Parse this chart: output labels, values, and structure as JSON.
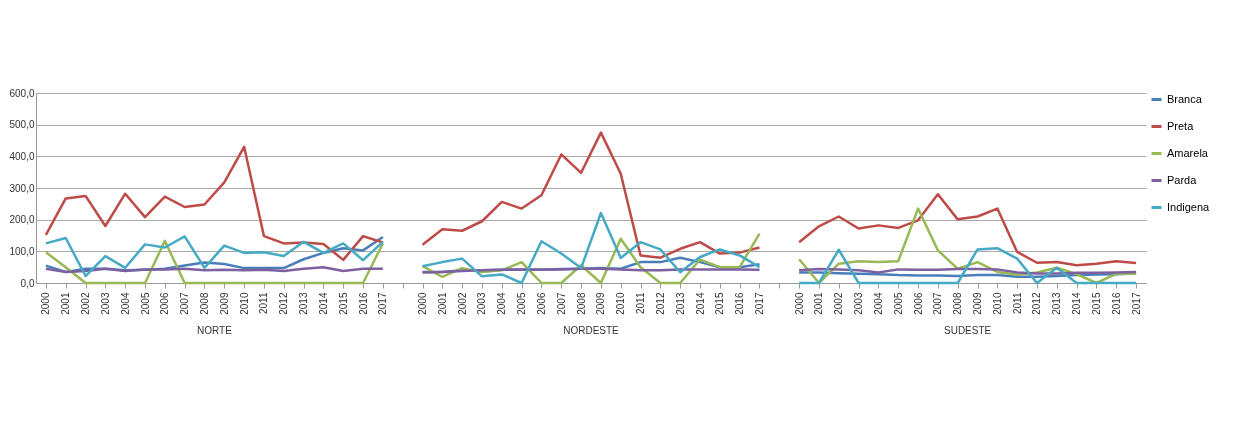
{
  "chart_data": {
    "type": "line",
    "categories": [
      "2000",
      "2001",
      "2002",
      "2003",
      "2004",
      "2005",
      "2006",
      "2007",
      "2008",
      "2009",
      "2010",
      "2011",
      "2012",
      "2013",
      "2014",
      "2015",
      "2016",
      "2017",
      null,
      "2000",
      "2001",
      "2002",
      "2003",
      "2004",
      "2005",
      "2006",
      "2007",
      "2008",
      "2009",
      "2010",
      "2011",
      "2012",
      "2013",
      "2014",
      "2015",
      "2016",
      "2017",
      null,
      "2000",
      "2001",
      "2002",
      "2003",
      "2004",
      "2005",
      "2006",
      "2007",
      "2008",
      "2009",
      "2010",
      "2011",
      "2012",
      "2013",
      "2014",
      "2015",
      "2016",
      "2017"
    ],
    "series": [
      {
        "name": "Branca",
        "color": "#4a7ebb",
        "values": [
          55,
          35,
          45,
          45,
          40,
          42,
          45,
          55,
          65,
          60,
          47,
          47,
          47,
          75,
          95,
          110,
          103,
          145,
          null,
          35,
          35,
          40,
          40,
          42,
          42,
          42,
          44,
          45,
          47,
          45,
          66,
          66,
          80,
          66,
          50,
          50,
          59,
          null,
          33,
          33,
          31,
          29,
          28,
          25,
          24,
          24,
          22,
          25,
          25,
          20,
          20,
          22,
          25,
          27,
          28,
          30
        ]
      },
      {
        "name": "Preta",
        "color": "#be4b48",
        "values": [
          152,
          267,
          275,
          180,
          282,
          208,
          273,
          240,
          248,
          318,
          430,
          148,
          125,
          128,
          123,
          73,
          148,
          128,
          null,
          121,
          170,
          165,
          195,
          256,
          235,
          277,
          406,
          348,
          475,
          345,
          87,
          80,
          108,
          129,
          93,
          96,
          112,
          null,
          129,
          179,
          210,
          172,
          182,
          174,
          198,
          280,
          201,
          210,
          235,
          98,
          64,
          66,
          56,
          61,
          69,
          63
        ]
      },
      {
        "name": "Amarela",
        "color": "#98b954",
        "values": [
          97,
          50,
          0,
          0,
          0,
          0,
          133,
          0,
          0,
          0,
          0,
          0,
          0,
          0,
          0,
          0,
          0,
          125,
          null,
          53,
          19,
          47,
          35,
          40,
          66,
          0,
          0,
          56,
          0,
          140,
          50,
          0,
          0,
          74,
          50,
          50,
          156,
          null,
          75,
          0,
          61,
          69,
          66,
          69,
          235,
          103,
          45,
          66,
          35,
          26,
          33,
          48,
          28,
          0,
          29,
          29
        ]
      },
      {
        "name": "Parda",
        "color": "#7d60a0",
        "values": [
          45,
          35,
          38,
          45,
          38,
          43,
          43,
          45,
          40,
          42,
          40,
          42,
          38,
          45,
          50,
          38,
          45,
          45,
          null,
          33,
          35,
          38,
          40,
          42,
          43,
          43,
          43,
          45,
          45,
          43,
          40,
          40,
          43,
          43,
          43,
          43,
          42,
          null,
          40,
          44,
          43,
          40,
          33,
          43,
          42,
          42,
          44,
          44,
          43,
          33,
          30,
          30,
          32,
          32,
          33,
          35
        ]
      },
      {
        "name": "Indigena",
        "color": "#46aac5",
        "values": [
          125,
          142,
          22,
          85,
          48,
          122,
          112,
          147,
          48,
          118,
          95,
          97,
          85,
          130,
          95,
          125,
          72,
          130,
          null,
          53,
          66,
          77,
          21,
          27,
          0,
          132,
          93,
          47,
          221,
          79,
          129,
          106,
          34,
          82,
          106,
          87,
          50,
          null,
          0,
          0,
          105,
          0,
          0,
          0,
          0,
          0,
          0,
          106,
          110,
          77,
          0,
          48,
          0,
          0,
          0,
          0
        ]
      }
    ],
    "ylim": [
      0,
      600
    ],
    "yticks": [
      {
        "value": 0,
        "label": "0,0"
      },
      {
        "value": 100,
        "label": "100,0"
      },
      {
        "value": 200,
        "label": "200,0"
      },
      {
        "value": 300,
        "label": "300,0"
      },
      {
        "value": 400,
        "label": "400,0"
      },
      {
        "value": 500,
        "label": "500,0"
      },
      {
        "value": 600,
        "label": "600,0"
      }
    ],
    "grid": "y",
    "legend": "right",
    "annotations": [
      "NORTE",
      "NORDESTE",
      "SUDESTE"
    ]
  }
}
